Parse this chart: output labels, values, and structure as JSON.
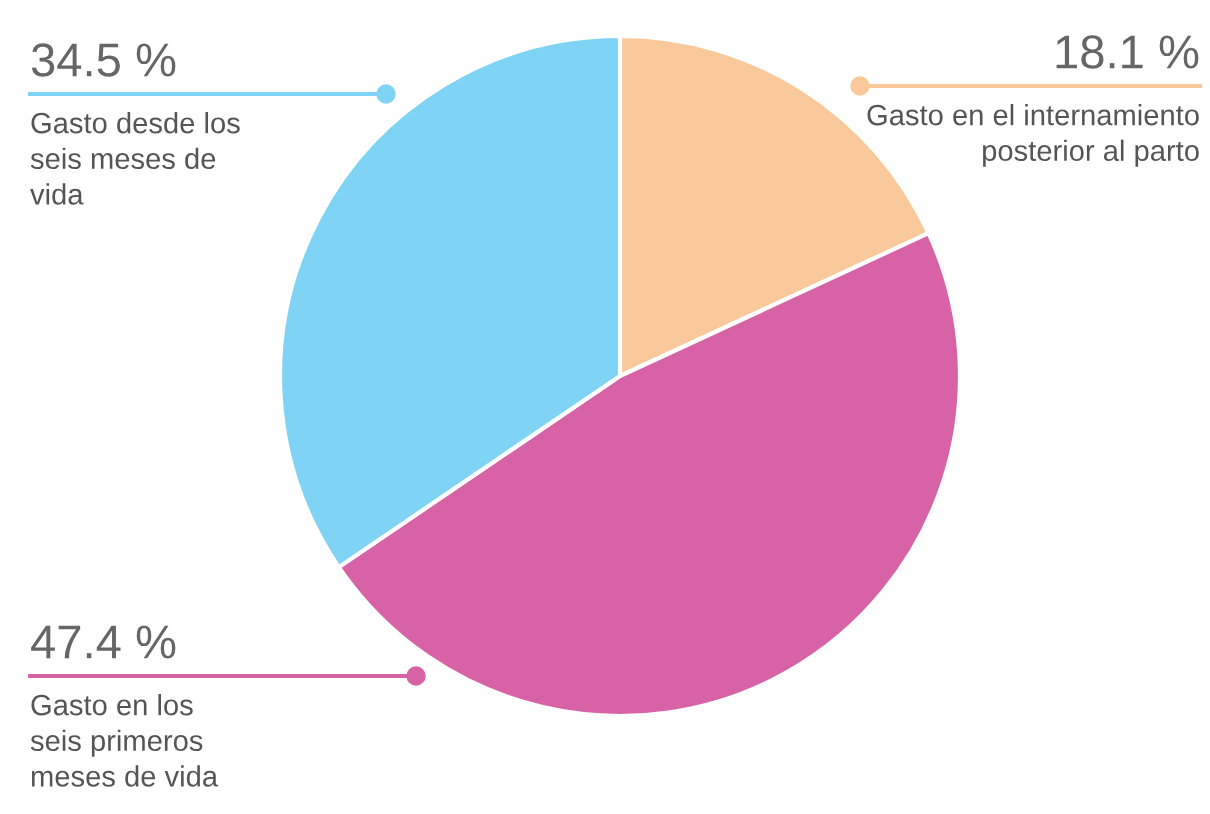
{
  "chart_data": {
    "type": "pie",
    "categories": [
      "Gasto en el internamiento posterior al parto",
      "Gasto en los seis primeros meses de vida",
      "Gasto desde los seis meses de vida"
    ],
    "values": [
      18.1,
      47.4,
      34.5
    ],
    "value_labels": [
      "18.1 %",
      "47.4 %",
      "34.5 %"
    ],
    "colors": [
      "#f9c89b",
      "#d762a6",
      "#7fd3f5"
    ]
  }
}
